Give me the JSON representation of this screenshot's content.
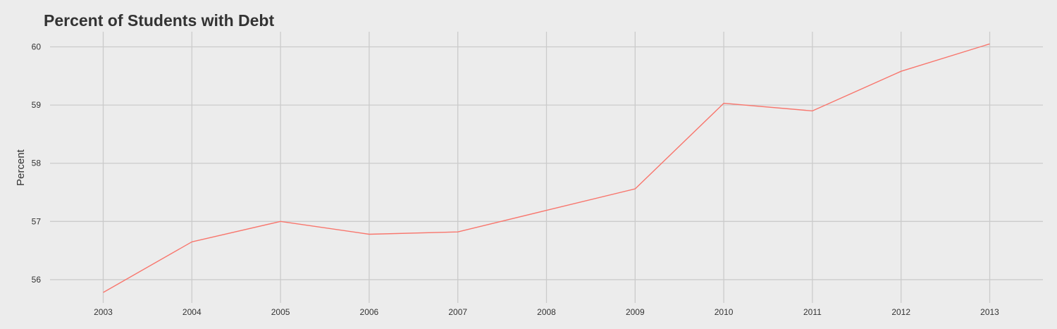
{
  "chart_data": {
    "type": "line",
    "title": "Percent of Students with Debt",
    "xlabel": "",
    "ylabel": "Percent",
    "x": [
      2003,
      2004,
      2005,
      2006,
      2007,
      2008,
      2009,
      2010,
      2011,
      2012,
      2013
    ],
    "series": [
      {
        "values": [
          55.78,
          56.65,
          57.0,
          56.78,
          56.82,
          57.19,
          57.56,
          59.03,
          58.9,
          59.58,
          60.05
        ],
        "color": "#f8766d"
      }
    ],
    "xlim": [
      2002.4,
      2013.6
    ],
    "ylim": [
      55.6,
      60.26
    ],
    "yticks": [
      56,
      57,
      58,
      59,
      60
    ],
    "xticks": [
      2003,
      2004,
      2005,
      2006,
      2007,
      2008,
      2009,
      2010,
      2011,
      2012,
      2013
    ],
    "grid": true,
    "legend": "none",
    "background": "#ececec",
    "grid_color": "#cbcbcb"
  }
}
